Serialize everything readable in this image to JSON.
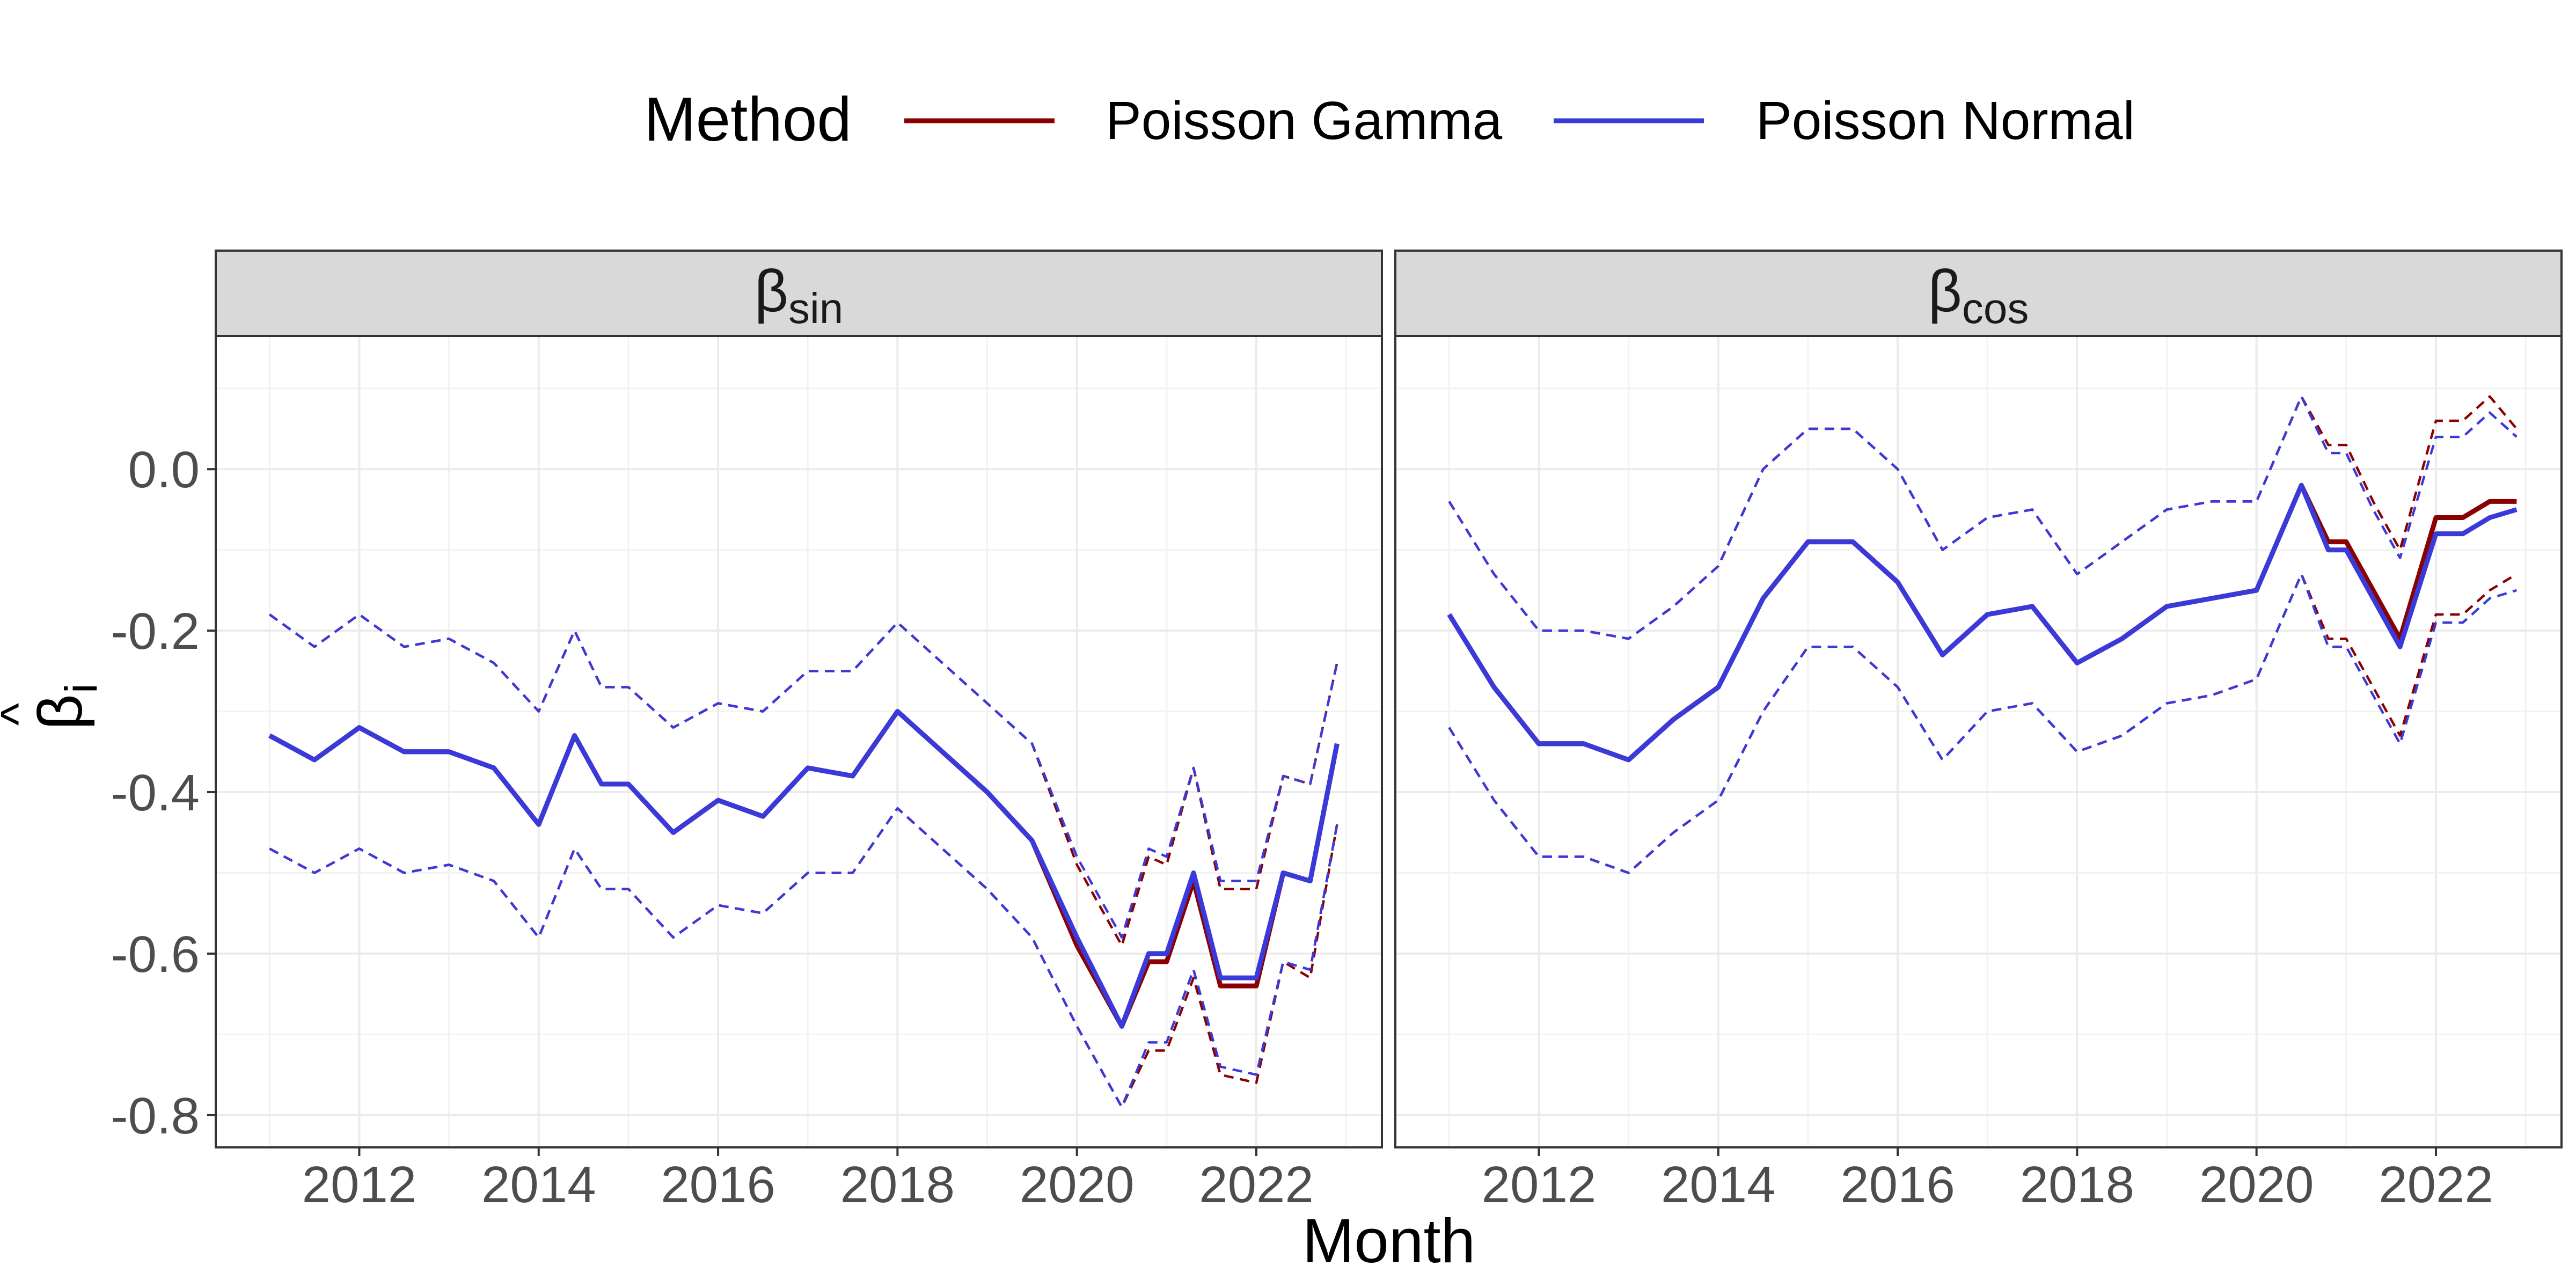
{
  "chart_data": {
    "type": "line",
    "legend": {
      "title": "Method",
      "position": "top",
      "items": [
        {
          "name": "Poisson Gamma",
          "color": "#8B0000"
        },
        {
          "name": "Poisson Normal",
          "color": "#3A3ADB"
        }
      ]
    },
    "xlabel": "Month",
    "ylabel_symbol": "β",
    "ylabel_hat": "^",
    "ylabel_subscript": "i",
    "grid": true,
    "line_styles": {
      "estimate": "solid",
      "interval": "dashed"
    },
    "xlim": [
      2010.4,
      2023.4
    ],
    "x_ticks": [
      2012,
      2014,
      2016,
      2018,
      2020,
      2022
    ],
    "panels": [
      {
        "strip": {
          "symbol": "β",
          "subscript": "sin"
        },
        "ylim": [
          -0.84,
          0.165
        ],
        "y_ticks": [
          0.0,
          -0.2,
          -0.4,
          -0.6,
          -0.8
        ],
        "y_tick_labels": [
          "0.0",
          "-0.2",
          "-0.4",
          "-0.6",
          "-0.8"
        ],
        "x_keys": [
          2011.0,
          2011.5,
          2012.0,
          2012.5,
          2013.0,
          2013.5,
          2014.0,
          2014.4,
          2014.7,
          2015.0,
          2015.5,
          2016.0,
          2016.5,
          2017.0,
          2017.5,
          2018.0,
          2018.5,
          2019.0,
          2019.5,
          2020.0,
          2020.5,
          2020.8,
          2021.0,
          2021.3,
          2021.6,
          2022.0,
          2022.3,
          2022.6,
          2022.9
        ],
        "series": [
          {
            "name": "Poisson Gamma",
            "kind": "estimate",
            "values": [
              -0.33,
              -0.36,
              -0.32,
              -0.35,
              -0.35,
              -0.37,
              -0.44,
              -0.33,
              -0.39,
              -0.39,
              -0.45,
              -0.41,
              -0.43,
              -0.37,
              -0.38,
              -0.3,
              -0.35,
              -0.4,
              -0.46,
              -0.59,
              -0.69,
              -0.61,
              -0.61,
              -0.51,
              -0.64,
              -0.64,
              -0.5,
              -0.51,
              -0.34
            ]
          },
          {
            "name": "Poisson Normal",
            "kind": "estimate",
            "values": [
              -0.33,
              -0.36,
              -0.32,
              -0.35,
              -0.35,
              -0.37,
              -0.44,
              -0.33,
              -0.39,
              -0.39,
              -0.45,
              -0.41,
              -0.43,
              -0.37,
              -0.38,
              -0.3,
              -0.35,
              -0.4,
              -0.46,
              -0.58,
              -0.69,
              -0.6,
              -0.6,
              -0.5,
              -0.63,
              -0.63,
              -0.5,
              -0.51,
              -0.34
            ]
          },
          {
            "name": "Poisson Gamma",
            "kind": "upper",
            "values": [
              -0.18,
              -0.22,
              -0.18,
              -0.22,
              -0.21,
              -0.24,
              -0.3,
              -0.2,
              -0.27,
              -0.27,
              -0.32,
              -0.29,
              -0.3,
              -0.25,
              -0.25,
              -0.19,
              -0.24,
              -0.29,
              -0.34,
              -0.49,
              -0.59,
              -0.48,
              -0.49,
              -0.37,
              -0.52,
              -0.52,
              -0.38,
              -0.39,
              -0.24
            ]
          },
          {
            "name": "Poisson Normal",
            "kind": "upper",
            "values": [
              -0.18,
              -0.22,
              -0.18,
              -0.22,
              -0.21,
              -0.24,
              -0.3,
              -0.2,
              -0.27,
              -0.27,
              -0.32,
              -0.29,
              -0.3,
              -0.25,
              -0.25,
              -0.19,
              -0.24,
              -0.29,
              -0.34,
              -0.48,
              -0.58,
              -0.47,
              -0.48,
              -0.37,
              -0.51,
              -0.51,
              -0.38,
              -0.39,
              -0.24
            ]
          },
          {
            "name": "Poisson Gamma",
            "kind": "lower",
            "values": [
              -0.47,
              -0.5,
              -0.47,
              -0.5,
              -0.49,
              -0.51,
              -0.58,
              -0.47,
              -0.52,
              -0.52,
              -0.58,
              -0.54,
              -0.55,
              -0.5,
              -0.5,
              -0.42,
              -0.47,
              -0.52,
              -0.58,
              -0.69,
              -0.79,
              -0.72,
              -0.72,
              -0.63,
              -0.75,
              -0.76,
              -0.61,
              -0.63,
              -0.44
            ]
          },
          {
            "name": "Poisson Normal",
            "kind": "lower",
            "values": [
              -0.47,
              -0.5,
              -0.47,
              -0.5,
              -0.49,
              -0.51,
              -0.58,
              -0.47,
              -0.52,
              -0.52,
              -0.58,
              -0.54,
              -0.55,
              -0.5,
              -0.5,
              -0.42,
              -0.47,
              -0.52,
              -0.58,
              -0.69,
              -0.79,
              -0.71,
              -0.71,
              -0.62,
              -0.74,
              -0.75,
              -0.61,
              -0.62,
              -0.44
            ]
          }
        ]
      },
      {
        "strip": {
          "symbol": "β",
          "subscript": "cos"
        },
        "ylim": [
          -0.84,
          0.165
        ],
        "y_ticks": [
          0.0,
          -0.2,
          -0.4,
          -0.6,
          -0.8
        ],
        "y_tick_labels": [
          "",
          "",
          "",
          "",
          ""
        ],
        "x_keys": [
          2011.0,
          2011.5,
          2012.0,
          2012.5,
          2013.0,
          2013.5,
          2014.0,
          2014.5,
          2015.0,
          2015.5,
          2016.0,
          2016.5,
          2017.0,
          2017.5,
          2018.0,
          2018.5,
          2019.0,
          2019.5,
          2020.0,
          2020.5,
          2020.8,
          2021.0,
          2021.3,
          2021.6,
          2022.0,
          2022.3,
          2022.6,
          2022.9
        ],
        "series": [
          {
            "name": "Poisson Gamma",
            "kind": "estimate",
            "values": [
              -0.18,
              -0.27,
              -0.34,
              -0.34,
              -0.36,
              -0.31,
              -0.27,
              -0.16,
              -0.09,
              -0.09,
              -0.14,
              -0.23,
              -0.18,
              -0.17,
              -0.24,
              -0.21,
              -0.17,
              -0.16,
              -0.15,
              -0.02,
              -0.09,
              -0.09,
              -0.15,
              -0.21,
              -0.06,
              -0.06,
              -0.04,
              -0.04
            ]
          },
          {
            "name": "Poisson Normal",
            "kind": "estimate",
            "values": [
              -0.18,
              -0.27,
              -0.34,
              -0.34,
              -0.36,
              -0.31,
              -0.27,
              -0.16,
              -0.09,
              -0.09,
              -0.14,
              -0.23,
              -0.18,
              -0.17,
              -0.24,
              -0.21,
              -0.17,
              -0.16,
              -0.15,
              -0.02,
              -0.1,
              -0.1,
              -0.16,
              -0.22,
              -0.08,
              -0.08,
              -0.06,
              -0.05
            ]
          },
          {
            "name": "Poisson Gamma",
            "kind": "upper",
            "values": [
              -0.04,
              -0.13,
              -0.2,
              -0.2,
              -0.21,
              -0.17,
              -0.12,
              0.0,
              0.05,
              0.05,
              0.0,
              -0.1,
              -0.06,
              -0.05,
              -0.13,
              -0.09,
              -0.05,
              -0.04,
              -0.04,
              0.09,
              0.03,
              0.03,
              -0.04,
              -0.1,
              0.06,
              0.06,
              0.09,
              0.05
            ]
          },
          {
            "name": "Poisson Normal",
            "kind": "upper",
            "values": [
              -0.04,
              -0.13,
              -0.2,
              -0.2,
              -0.21,
              -0.17,
              -0.12,
              0.0,
              0.05,
              0.05,
              0.0,
              -0.1,
              -0.06,
              -0.05,
              -0.13,
              -0.09,
              -0.05,
              -0.04,
              -0.04,
              0.09,
              0.02,
              0.02,
              -0.05,
              -0.11,
              0.04,
              0.04,
              0.07,
              0.04
            ]
          },
          {
            "name": "Poisson Gamma",
            "kind": "lower",
            "values": [
              -0.32,
              -0.41,
              -0.48,
              -0.48,
              -0.5,
              -0.45,
              -0.41,
              -0.3,
              -0.22,
              -0.22,
              -0.27,
              -0.36,
              -0.3,
              -0.29,
              -0.35,
              -0.33,
              -0.29,
              -0.28,
              -0.26,
              -0.13,
              -0.21,
              -0.21,
              -0.27,
              -0.33,
              -0.18,
              -0.18,
              -0.15,
              -0.13
            ]
          },
          {
            "name": "Poisson Normal",
            "kind": "lower",
            "values": [
              -0.32,
              -0.41,
              -0.48,
              -0.48,
              -0.5,
              -0.45,
              -0.41,
              -0.3,
              -0.22,
              -0.22,
              -0.27,
              -0.36,
              -0.3,
              -0.29,
              -0.35,
              -0.33,
              -0.29,
              -0.28,
              -0.26,
              -0.13,
              -0.22,
              -0.22,
              -0.28,
              -0.34,
              -0.19,
              -0.19,
              -0.16,
              -0.15
            ]
          }
        ]
      }
    ]
  }
}
